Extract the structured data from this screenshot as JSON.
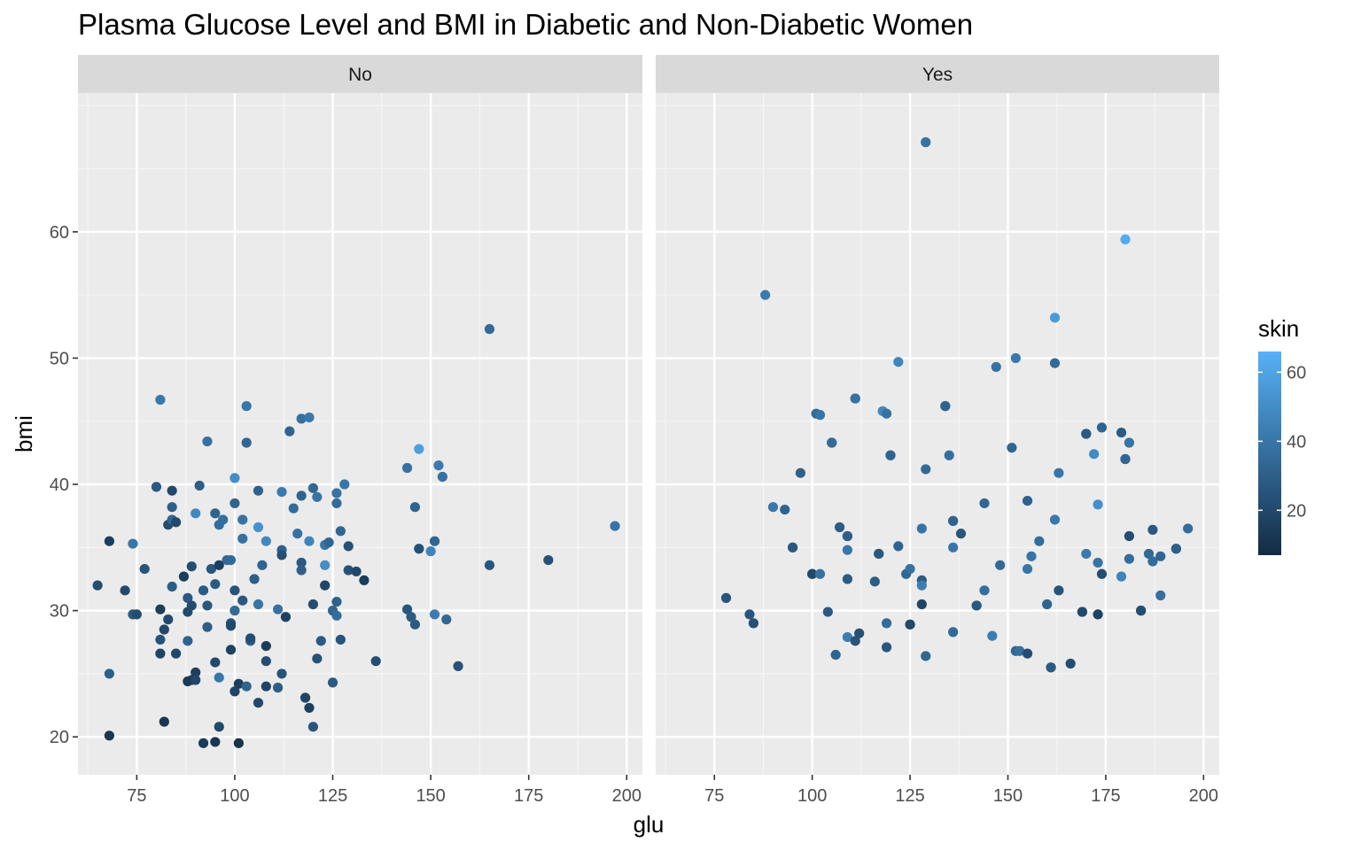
{
  "chart_data": {
    "type": "scatter",
    "title": "Plasma Glucose Level and BMI in Diabetic and Non-Diabetic Women",
    "xlabel": "glu",
    "ylabel": "bmi",
    "xlim": [
      60,
      204
    ],
    "ylim": [
      17,
      71
    ],
    "x_ticks": [
      75,
      100,
      125,
      150,
      175,
      200
    ],
    "y_ticks": [
      20,
      30,
      40,
      50,
      60
    ],
    "color_variable": "skin",
    "color_scale": {
      "low": "#132B43",
      "high": "#56B1F7",
      "min": 7,
      "max": 66,
      "ticks": [
        20,
        40,
        60
      ]
    },
    "grid": true,
    "legend_position": "right",
    "facets": [
      {
        "label": "No",
        "points": [
          [
            65,
            32.0,
            22
          ],
          [
            68,
            35.5,
            15
          ],
          [
            68,
            25.0,
            30
          ],
          [
            68,
            20.1,
            12
          ],
          [
            72,
            31.6,
            20
          ],
          [
            74,
            35.3,
            40
          ],
          [
            74,
            29.7,
            28
          ],
          [
            75,
            29.7,
            22
          ],
          [
            77,
            33.3,
            25
          ],
          [
            80,
            39.8,
            27
          ],
          [
            81,
            46.7,
            41
          ],
          [
            81,
            30.1,
            15
          ],
          [
            81,
            27.7,
            24
          ],
          [
            81,
            26.6,
            18
          ],
          [
            82,
            28.5,
            20
          ],
          [
            82,
            21.2,
            12
          ],
          [
            83,
            36.8,
            22
          ],
          [
            83,
            29.3,
            21
          ],
          [
            84,
            39.5,
            20
          ],
          [
            84,
            38.2,
            30
          ],
          [
            84,
            37.2,
            33
          ],
          [
            84,
            31.9,
            29
          ],
          [
            85,
            26.6,
            19
          ],
          [
            85,
            37.0,
            20
          ],
          [
            87,
            32.7,
            15
          ],
          [
            88,
            31.0,
            27
          ],
          [
            88,
            27.6,
            32
          ],
          [
            88,
            29.9,
            20
          ],
          [
            88,
            24.4,
            14
          ],
          [
            89,
            33.5,
            22
          ],
          [
            89,
            30.4,
            21
          ],
          [
            89,
            24.5,
            13
          ],
          [
            90,
            37.7,
            48
          ],
          [
            90,
            25.1,
            16
          ],
          [
            90,
            24.5,
            19
          ],
          [
            91,
            39.9,
            30
          ],
          [
            92,
            19.5,
            14
          ],
          [
            92,
            31.6,
            28
          ],
          [
            93,
            43.4,
            38
          ],
          [
            93,
            30.4,
            26
          ],
          [
            93,
            28.7,
            29
          ],
          [
            94,
            33.3,
            26
          ],
          [
            95,
            37.7,
            32
          ],
          [
            95,
            32.1,
            28
          ],
          [
            95,
            25.9,
            20
          ],
          [
            95,
            19.6,
            12
          ],
          [
            96,
            36.8,
            36
          ],
          [
            96,
            24.7,
            40
          ],
          [
            96,
            20.8,
            20
          ],
          [
            96,
            33.6,
            16
          ],
          [
            97,
            37.2,
            37
          ],
          [
            98,
            34.0,
            34
          ],
          [
            99,
            34.0,
            35
          ],
          [
            99,
            29.0,
            25
          ],
          [
            99,
            28.8,
            20
          ],
          [
            99,
            26.9,
            17
          ],
          [
            100,
            38.5,
            32
          ],
          [
            100,
            40.5,
            50
          ],
          [
            100,
            31.6,
            25
          ],
          [
            100,
            30.0,
            35
          ],
          [
            100,
            23.6,
            18
          ],
          [
            101,
            24.2,
            15
          ],
          [
            101,
            19.5,
            10
          ],
          [
            102,
            37.2,
            39
          ],
          [
            102,
            35.7,
            38
          ],
          [
            102,
            30.8,
            27
          ],
          [
            103,
            46.2,
            40
          ],
          [
            103,
            43.3,
            33
          ],
          [
            103,
            24.0,
            32
          ],
          [
            104,
            27.6,
            30
          ],
          [
            104,
            27.8,
            22
          ],
          [
            105,
            32.5,
            30
          ],
          [
            106,
            39.5,
            31
          ],
          [
            106,
            36.6,
            52
          ],
          [
            106,
            30.5,
            39
          ],
          [
            106,
            22.7,
            20
          ],
          [
            107,
            33.6,
            32
          ],
          [
            108,
            35.5,
            48
          ],
          [
            108,
            27.2,
            14
          ],
          [
            108,
            26.0,
            22
          ],
          [
            108,
            24.0,
            18
          ],
          [
            111,
            30.1,
            38
          ],
          [
            111,
            23.9,
            29
          ],
          [
            112,
            39.4,
            42
          ],
          [
            112,
            34.8,
            31
          ],
          [
            112,
            34.4,
            23
          ],
          [
            112,
            25.0,
            25
          ],
          [
            113,
            29.5,
            17
          ],
          [
            114,
            44.2,
            32
          ],
          [
            115,
            38.1,
            36
          ],
          [
            116,
            36.1,
            38
          ],
          [
            117,
            45.2,
            38
          ],
          [
            117,
            39.1,
            32
          ],
          [
            117,
            33.8,
            27
          ],
          [
            117,
            33.2,
            30
          ],
          [
            118,
            23.1,
            18
          ],
          [
            119,
            45.3,
            41
          ],
          [
            119,
            35.5,
            47
          ],
          [
            119,
            22.3,
            16
          ],
          [
            120,
            39.7,
            34
          ],
          [
            120,
            30.5,
            22
          ],
          [
            120,
            20.8,
            26
          ],
          [
            121,
            39.0,
            39
          ],
          [
            121,
            26.2,
            24
          ],
          [
            122,
            27.6,
            28
          ],
          [
            123,
            35.2,
            40
          ],
          [
            123,
            33.6,
            50
          ],
          [
            123,
            32.0,
            19
          ],
          [
            124,
            35.4,
            33
          ],
          [
            125,
            30.0,
            33
          ],
          [
            125,
            24.3,
            28
          ],
          [
            126,
            39.3,
            39
          ],
          [
            126,
            38.5,
            35
          ],
          [
            126,
            30.7,
            31
          ],
          [
            126,
            29.6,
            36
          ],
          [
            127,
            36.3,
            33
          ],
          [
            127,
            27.7,
            25
          ],
          [
            128,
            40.0,
            40
          ],
          [
            129,
            35.1,
            24
          ],
          [
            129,
            33.2,
            24
          ],
          [
            131,
            33.1,
            20
          ],
          [
            133,
            32.4,
            15
          ],
          [
            136,
            26.0,
            22
          ],
          [
            144,
            41.3,
            38
          ],
          [
            144,
            30.1,
            26
          ],
          [
            145,
            29.5,
            28
          ],
          [
            146,
            38.2,
            32
          ],
          [
            146,
            28.9,
            28
          ],
          [
            147,
            42.8,
            58
          ],
          [
            147,
            34.9,
            23
          ],
          [
            150,
            34.7,
            46
          ],
          [
            151,
            35.5,
            33
          ],
          [
            151,
            29.7,
            43
          ],
          [
            152,
            41.5,
            42
          ],
          [
            153,
            40.6,
            38
          ],
          [
            154,
            29.3,
            33
          ],
          [
            157,
            25.6,
            24
          ],
          [
            165,
            52.3,
            35
          ],
          [
            165,
            33.6,
            26
          ],
          [
            180,
            34.0,
            24
          ],
          [
            197,
            36.7,
            39
          ]
        ]
      },
      {
        "label": "Yes",
        "points": [
          [
            78,
            31.0,
            25
          ],
          [
            84,
            29.7,
            26
          ],
          [
            85,
            29.0,
            23
          ],
          [
            88,
            55.0,
            42
          ],
          [
            90,
            38.2,
            41
          ],
          [
            93,
            38.0,
            32
          ],
          [
            95,
            35.0,
            24
          ],
          [
            95,
            35.0,
            27
          ],
          [
            97,
            40.9,
            31
          ],
          [
            100,
            32.9,
            15
          ],
          [
            100,
            32.9,
            20
          ],
          [
            101,
            45.6,
            35
          ],
          [
            102,
            45.5,
            39
          ],
          [
            102,
            32.9,
            38
          ],
          [
            104,
            29.9,
            27
          ],
          [
            105,
            43.3,
            33
          ],
          [
            105,
            43.3,
            35
          ],
          [
            106,
            26.5,
            32
          ],
          [
            107,
            36.6,
            29
          ],
          [
            109,
            35.9,
            27
          ],
          [
            109,
            35.9,
            30
          ],
          [
            109,
            34.8,
            40
          ],
          [
            109,
            32.5,
            28
          ],
          [
            109,
            27.9,
            43
          ],
          [
            111,
            46.8,
            34
          ],
          [
            111,
            46.8,
            38
          ],
          [
            111,
            27.6,
            25
          ],
          [
            112,
            28.2,
            23
          ],
          [
            116,
            32.3,
            29
          ],
          [
            117,
            34.5,
            23
          ],
          [
            117,
            34.5,
            27
          ],
          [
            118,
            45.8,
            48
          ],
          [
            119,
            45.6,
            38
          ],
          [
            119,
            29.0,
            35
          ],
          [
            119,
            27.1,
            26
          ],
          [
            120,
            42.3,
            35
          ],
          [
            120,
            42.3,
            32
          ],
          [
            122,
            49.7,
            47
          ],
          [
            122,
            35.1,
            32
          ],
          [
            124,
            32.9,
            33
          ],
          [
            125,
            33.3,
            38
          ],
          [
            125,
            28.9,
            25
          ],
          [
            125,
            28.9,
            20
          ],
          [
            128,
            36.5,
            39
          ],
          [
            128,
            32.4,
            28
          ],
          [
            128,
            32.0,
            43
          ],
          [
            128,
            30.5,
            18
          ],
          [
            129,
            67.1,
            38
          ],
          [
            129,
            41.2,
            35
          ],
          [
            129,
            26.4,
            33
          ],
          [
            134,
            46.2,
            34
          ],
          [
            134,
            46.2,
            32
          ],
          [
            135,
            42.3,
            37
          ],
          [
            136,
            37.1,
            28
          ],
          [
            136,
            37.1,
            32
          ],
          [
            136,
            35.0,
            40
          ],
          [
            136,
            28.3,
            35
          ],
          [
            138,
            36.1,
            26
          ],
          [
            142,
            30.4,
            30
          ],
          [
            142,
            30.4,
            27
          ],
          [
            144,
            38.5,
            33
          ],
          [
            144,
            31.6,
            37
          ],
          [
            146,
            28.0,
            43
          ],
          [
            147,
            49.3,
            38
          ],
          [
            148,
            33.6,
            35
          ],
          [
            151,
            42.9,
            33
          ],
          [
            152,
            50.0,
            41
          ],
          [
            152,
            26.8,
            33
          ],
          [
            153,
            26.8,
            37
          ],
          [
            155,
            38.7,
            31
          ],
          [
            155,
            33.3,
            40
          ],
          [
            155,
            26.6,
            22
          ],
          [
            156,
            34.3,
            39
          ],
          [
            158,
            35.5,
            36
          ],
          [
            160,
            30.5,
            32
          ],
          [
            161,
            25.5,
            32
          ],
          [
            161,
            25.5,
            28
          ],
          [
            162,
            53.2,
            56
          ],
          [
            162,
            49.6,
            35
          ],
          [
            162,
            37.2,
            41
          ],
          [
            163,
            40.9,
            40
          ],
          [
            163,
            31.6,
            25
          ],
          [
            166,
            25.8,
            22
          ],
          [
            169,
            29.9,
            22
          ],
          [
            169,
            29.9,
            20
          ],
          [
            170,
            44.0,
            25
          ],
          [
            170,
            44.0,
            28
          ],
          [
            170,
            34.5,
            42
          ],
          [
            172,
            42.4,
            49
          ],
          [
            173,
            38.4,
            51
          ],
          [
            173,
            33.8,
            39
          ],
          [
            173,
            29.7,
            17
          ],
          [
            174,
            44.5,
            32
          ],
          [
            174,
            32.9,
            22
          ],
          [
            179,
            44.1,
            28
          ],
          [
            179,
            32.7,
            46
          ],
          [
            180,
            59.4,
            63
          ],
          [
            180,
            42.0,
            36
          ],
          [
            180,
            42.0,
            33
          ],
          [
            181,
            43.3,
            39
          ],
          [
            181,
            35.9,
            22
          ],
          [
            181,
            34.1,
            36
          ],
          [
            184,
            30.0,
            18
          ],
          [
            184,
            30.0,
            22
          ],
          [
            186,
            34.5,
            34
          ],
          [
            187,
            36.4,
            27
          ],
          [
            187,
            33.9,
            36
          ],
          [
            189,
            34.3,
            33
          ],
          [
            189,
            31.2,
            37
          ],
          [
            193,
            34.9,
            33
          ],
          [
            193,
            34.9,
            30
          ],
          [
            196,
            36.5,
            36
          ]
        ]
      }
    ]
  }
}
